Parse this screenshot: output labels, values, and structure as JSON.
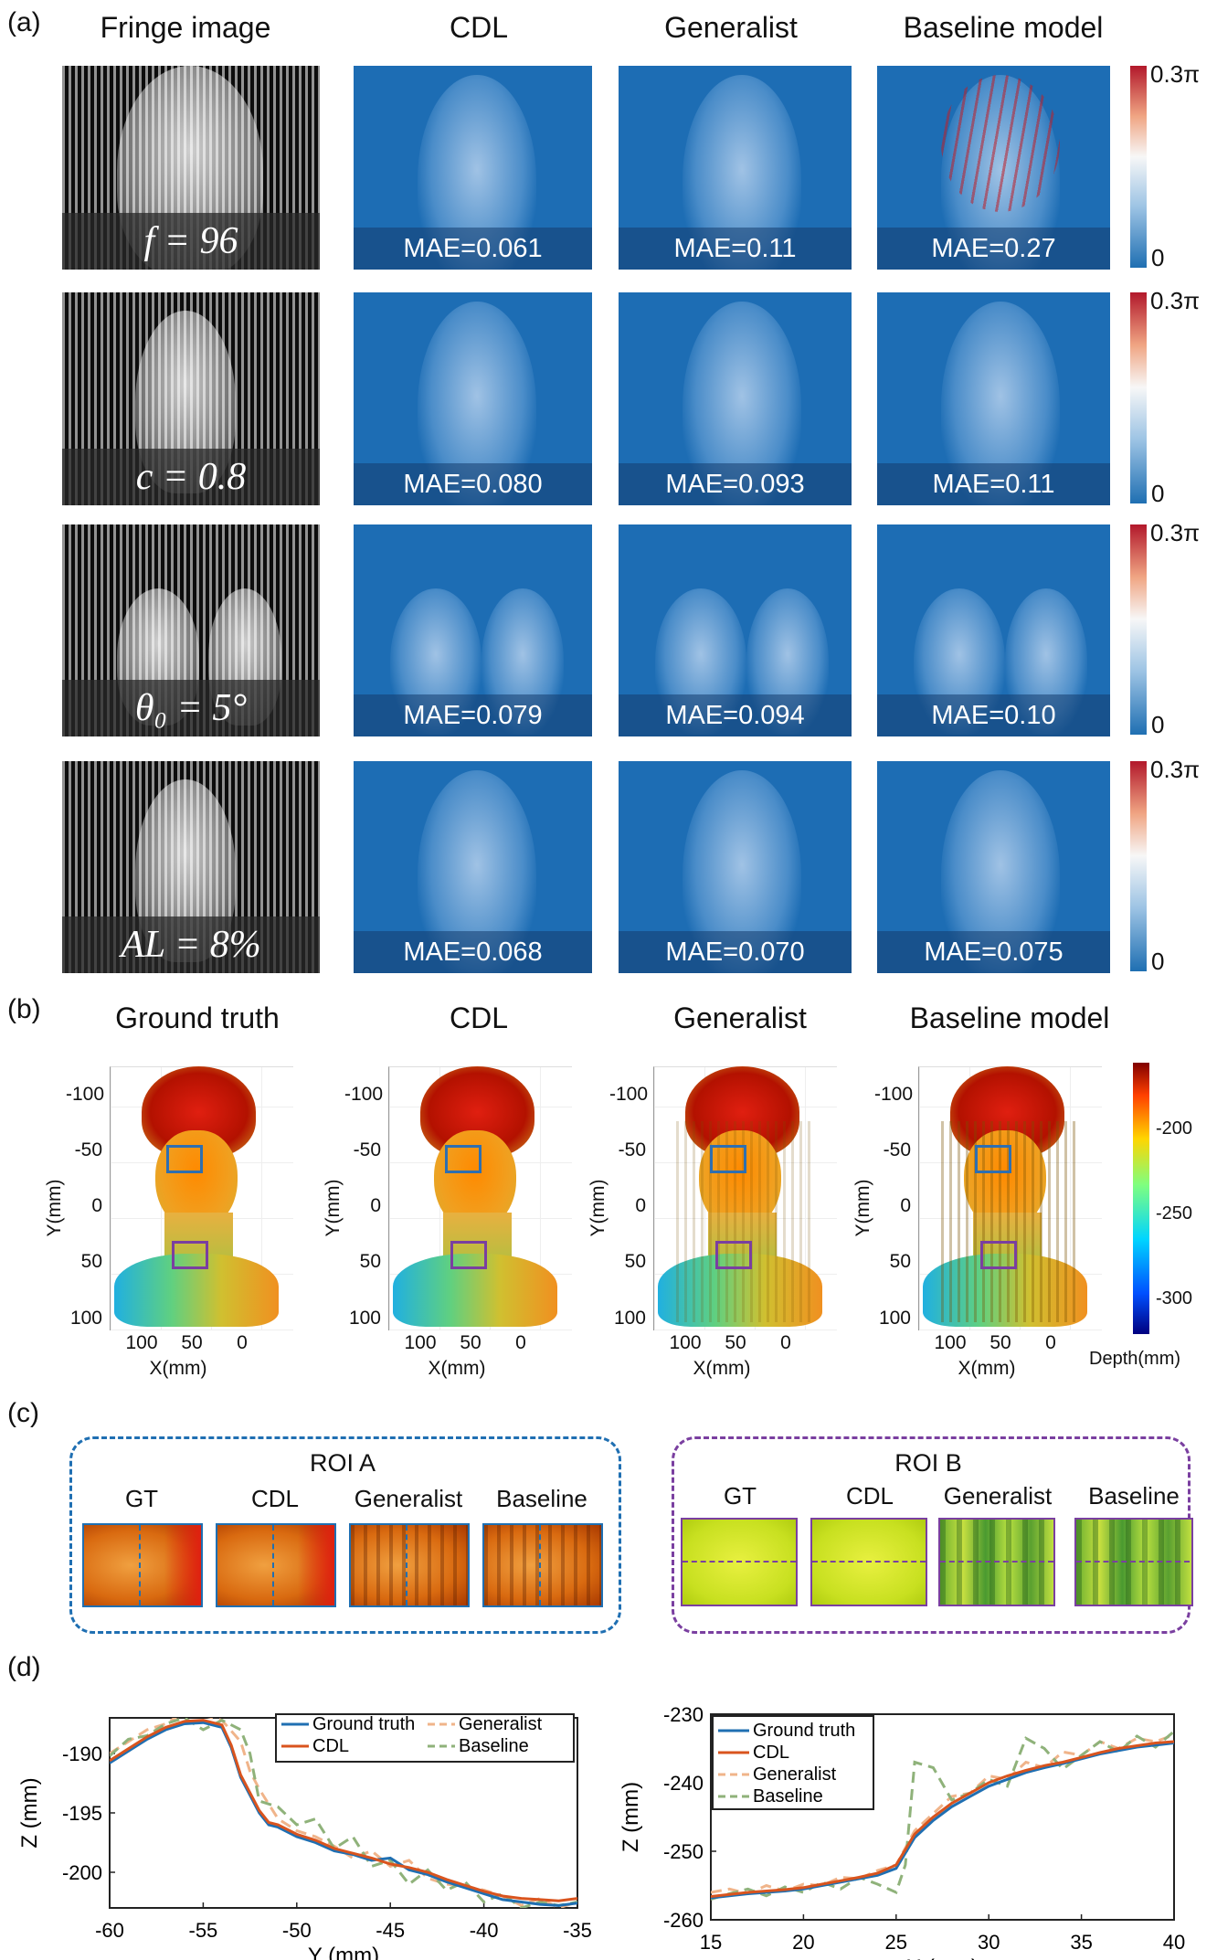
{
  "panels": {
    "a": "(a)",
    "b": "(b)",
    "c": "(c)",
    "d": "(d)"
  },
  "panel_a": {
    "columns": [
      "Fringe image",
      "CDL",
      "Generalist",
      "Baseline model"
    ],
    "colorbar": {
      "max": "0.3π",
      "min": "0"
    },
    "rows": [
      {
        "param": "f = 96",
        "mae": [
          "MAE=0.061",
          "MAE=0.11",
          "MAE=0.27"
        ]
      },
      {
        "param": "c = 0.8",
        "mae": [
          "MAE=0.080",
          "MAE=0.093",
          "MAE=0.11"
        ]
      },
      {
        "param": "θ₀ = 5°",
        "mae": [
          "MAE=0.079",
          "MAE=0.094",
          "MAE=0.10"
        ]
      },
      {
        "param": "AL = 8%",
        "mae": [
          "MAE=0.068",
          "MAE=0.070",
          "MAE=0.075"
        ]
      }
    ]
  },
  "panel_b": {
    "columns": [
      "Ground truth",
      "CDL",
      "Generalist",
      "Baseline model"
    ],
    "y_ticks": [
      "-100",
      "-50",
      "0",
      "50",
      "100"
    ],
    "x_ticks": [
      "100",
      "50",
      "0"
    ],
    "ylabel": "Y(mm)",
    "xlabel": "X(mm)",
    "colorbar": {
      "ticks": [
        "-200",
        "-250",
        "-300"
      ],
      "label": "Depth(mm)"
    },
    "colors": {
      "roi_a": "#2f6fb0",
      "roi_b": "#7a3fa0"
    }
  },
  "panel_c": {
    "roi_a": {
      "title": "ROI A",
      "labels": [
        "GT",
        "CDL",
        "Generalist",
        "Baseline"
      ],
      "color": "#1f6fb2"
    },
    "roi_b": {
      "title": "ROI B",
      "labels": [
        "GT",
        "CDL",
        "Generalist",
        "Baseline"
      ],
      "color": "#7a3fa0"
    }
  },
  "chart_data": [
    {
      "type": "line",
      "xlabel": "Y (mm)",
      "ylabel": "Z (mm)",
      "xlim": [
        -60,
        -35
      ],
      "ylim": [
        -203,
        -187
      ],
      "x_ticks": [
        "-60",
        "-55",
        "-50",
        "-45",
        "-40",
        "-35"
      ],
      "y_ticks": [
        "-190",
        "-195",
        "-200"
      ],
      "legend": "top-right",
      "series": [
        {
          "name": "Ground truth",
          "color": "#1f6fb2",
          "dash": false,
          "x": [
            -60,
            -59,
            -58,
            -57,
            -56,
            -55,
            -54,
            -53.5,
            -53,
            -52,
            -51.5,
            -51,
            -50,
            -49,
            -48,
            -47,
            -46,
            -45,
            -44,
            -43,
            -42,
            -41,
            -40,
            -39,
            -38,
            -37,
            -36,
            -35
          ],
          "y": [
            -190.8,
            -189.8,
            -188.8,
            -188,
            -187.5,
            -187.4,
            -187.8,
            -189.5,
            -192,
            -195,
            -196,
            -196.2,
            -197,
            -197.5,
            -198.2,
            -198.5,
            -199,
            -198.8,
            -199.8,
            -200.2,
            -200.8,
            -201.3,
            -201.8,
            -202.3,
            -202.5,
            -202.7,
            -202.8,
            -202.6
          ]
        },
        {
          "name": "CDL",
          "color": "#d9541e",
          "dash": false,
          "x": [
            -60,
            -59,
            -58,
            -57,
            -56,
            -55,
            -54,
            -53.5,
            -53,
            -52,
            -51.5,
            -51,
            -50,
            -49,
            -48,
            -47,
            -46,
            -45,
            -44,
            -43,
            -42,
            -41,
            -40,
            -39,
            -38,
            -37,
            -36,
            -35
          ],
          "y": [
            -190.6,
            -189.6,
            -188.6,
            -187.8,
            -187.3,
            -187.2,
            -187.6,
            -189.3,
            -191.8,
            -194.8,
            -195.8,
            -196,
            -196.8,
            -197.3,
            -198,
            -198.4,
            -198.8,
            -199.3,
            -199.6,
            -200,
            -200.6,
            -201.1,
            -201.6,
            -202,
            -202.2,
            -202.3,
            -202.4,
            -202.2
          ]
        },
        {
          "name": "Generalist",
          "color": "#f0b48a",
          "dash": true,
          "x": [
            -60,
            -59,
            -58,
            -57,
            -56,
            -55,
            -54,
            -53,
            -52.5,
            -52,
            -51,
            -50,
            -49,
            -48,
            -47,
            -46,
            -45,
            -44,
            -43,
            -42,
            -41,
            -40,
            -39,
            -38,
            -37,
            -36,
            -35
          ],
          "y": [
            -190,
            -189,
            -188,
            -187.5,
            -186.5,
            -186.8,
            -187.2,
            -189,
            -191.5,
            -193,
            -195.5,
            -196.5,
            -197,
            -197.8,
            -198.8,
            -198.2,
            -199.5,
            -199,
            -200.5,
            -201,
            -201.2,
            -201.5,
            -202,
            -202.8,
            -202.2,
            -203,
            -202.5
          ]
        },
        {
          "name": "Baseline",
          "color": "#8fb27a",
          "dash": true,
          "x": [
            -60,
            -59,
            -58,
            -57,
            -56,
            -55,
            -54,
            -53,
            -52.5,
            -52,
            -51,
            -50,
            -49,
            -48,
            -47,
            -46,
            -45,
            -44,
            -43,
            -42,
            -41,
            -40,
            -39,
            -38,
            -37,
            -36,
            -35
          ],
          "y": [
            -190.2,
            -188.8,
            -188.5,
            -187.5,
            -187,
            -188,
            -187.2,
            -188,
            -190,
            -194,
            -194.5,
            -196,
            -195.5,
            -198,
            -197,
            -199.5,
            -199,
            -201,
            -199.8,
            -201.5,
            -200.8,
            -202.5,
            -201.8,
            -203,
            -202.5,
            -202.8,
            -202.5
          ]
        }
      ]
    },
    {
      "type": "line",
      "xlabel": "X (mm)",
      "ylabel": "Z (mm)",
      "xlim": [
        15,
        40
      ],
      "ylim": [
        -260,
        -230
      ],
      "x_ticks": [
        "15",
        "20",
        "25",
        "30",
        "35",
        "40"
      ],
      "y_ticks": [
        "-230",
        "-240",
        "-250",
        "-260"
      ],
      "legend": "top-left",
      "series": [
        {
          "name": "Ground truth",
          "color": "#1f6fb2",
          "dash": false,
          "x": [
            15,
            16,
            17,
            18,
            19,
            20,
            21,
            22,
            23,
            24,
            25,
            26,
            27,
            28,
            29,
            30,
            31,
            32,
            33,
            34,
            35,
            36,
            37,
            38,
            39,
            40
          ],
          "y": [
            -256.8,
            -256.5,
            -256.2,
            -256,
            -255.8,
            -255.5,
            -255,
            -254.5,
            -254,
            -253.5,
            -252.5,
            -248,
            -245.5,
            -243.5,
            -242,
            -240.5,
            -239.5,
            -238.5,
            -237.8,
            -237.2,
            -236.5,
            -235.8,
            -235.3,
            -234.8,
            -234.5,
            -234.2
          ]
        },
        {
          "name": "CDL",
          "color": "#d9541e",
          "dash": false,
          "x": [
            15,
            16,
            17,
            18,
            19,
            20,
            21,
            22,
            23,
            24,
            25,
            26,
            27,
            28,
            29,
            30,
            31,
            32,
            33,
            34,
            35,
            36,
            37,
            38,
            39,
            40
          ],
          "y": [
            -256.6,
            -256.3,
            -256,
            -255.8,
            -255.6,
            -255.3,
            -254.8,
            -254.3,
            -253.8,
            -253.2,
            -252,
            -247.5,
            -245,
            -243,
            -241.5,
            -240,
            -239,
            -238.2,
            -237.5,
            -237,
            -236.3,
            -235.6,
            -235,
            -234.6,
            -234.2,
            -234
          ]
        },
        {
          "name": "Generalist",
          "color": "#f0b48a",
          "dash": true,
          "x": [
            15,
            16,
            17,
            18,
            19,
            20,
            21,
            22,
            23,
            24,
            25,
            26,
            27,
            28,
            29,
            30,
            31,
            32,
            33,
            34,
            35,
            36,
            37,
            38,
            39,
            40
          ],
          "y": [
            -256,
            -255.5,
            -256.2,
            -255,
            -255.8,
            -254.8,
            -255,
            -253.8,
            -254,
            -252.8,
            -252,
            -247,
            -244.5,
            -242,
            -241.5,
            -239,
            -239.5,
            -237,
            -237.8,
            -235.5,
            -236,
            -234,
            -235,
            -233.5,
            -234,
            -233
          ]
        },
        {
          "name": "Baseline",
          "color": "#8fb27a",
          "dash": true,
          "x": [
            15,
            16,
            17,
            18,
            19,
            20,
            21,
            22,
            23,
            24,
            25,
            25.5,
            26,
            27,
            28,
            29,
            30,
            31,
            32,
            33,
            34,
            35,
            36,
            37,
            38,
            39,
            40
          ],
          "y": [
            -257,
            -256.2,
            -255.5,
            -256.5,
            -255.2,
            -256,
            -254.5,
            -255.5,
            -253.8,
            -254.8,
            -256,
            -252,
            -237,
            -237.8,
            -242.5,
            -241.5,
            -239.5,
            -240.5,
            -233.5,
            -235,
            -238,
            -236,
            -234,
            -235.5,
            -233.2,
            -234.8,
            -232.5
          ]
        }
      ]
    }
  ]
}
